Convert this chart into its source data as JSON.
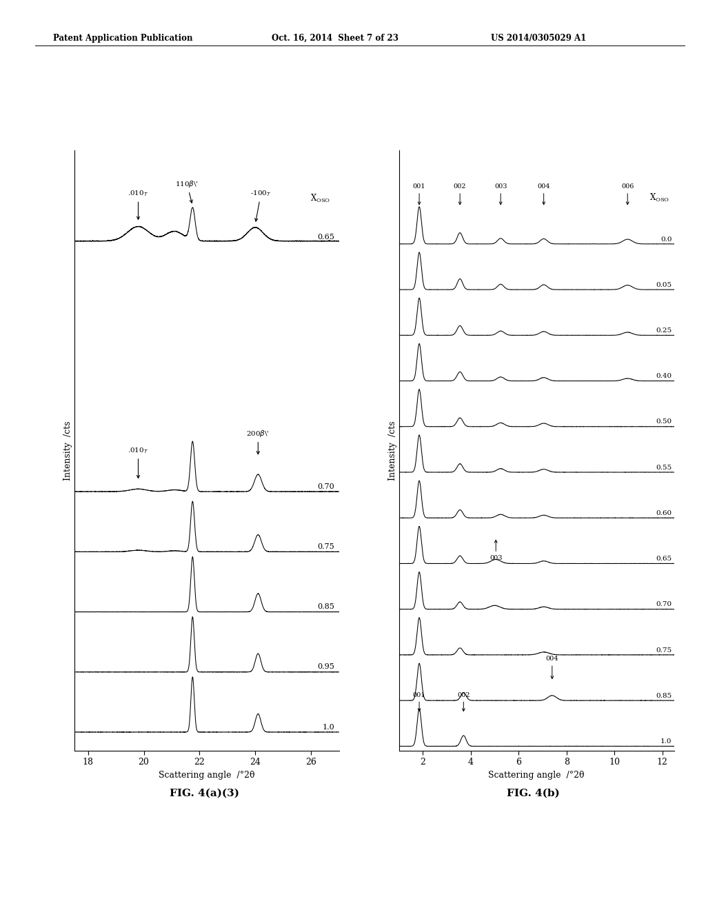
{
  "header_left": "Patent Application Publication",
  "header_mid": "Oct. 16, 2014  Sheet 7 of 23",
  "header_right": "US 2014/0305029 A1",
  "fig_a_title": "FIG. 4(a)(3)",
  "fig_b_title": "FIG. 4(b)",
  "xlabel": "Scattering angle  /°2θ",
  "ylabel": "Intensity  /cts",
  "fig_a": {
    "xmin": 17.5,
    "xmax": 27.0,
    "xticks": [
      18,
      20,
      22,
      24,
      26
    ],
    "labels": [
      "0.65",
      "0.70",
      "0.75",
      "0.85",
      "0.95",
      "1.0"
    ]
  },
  "fig_b": {
    "xmin": 1.0,
    "xmax": 12.5,
    "xticks": [
      2,
      4,
      6,
      8,
      10,
      12
    ],
    "labels": [
      "0.0",
      "0.05",
      "0.25",
      "0.40",
      "0.50",
      "0.55",
      "0.60",
      "0.65",
      "0.70",
      "0.75",
      "0.85",
      "1.0"
    ]
  }
}
